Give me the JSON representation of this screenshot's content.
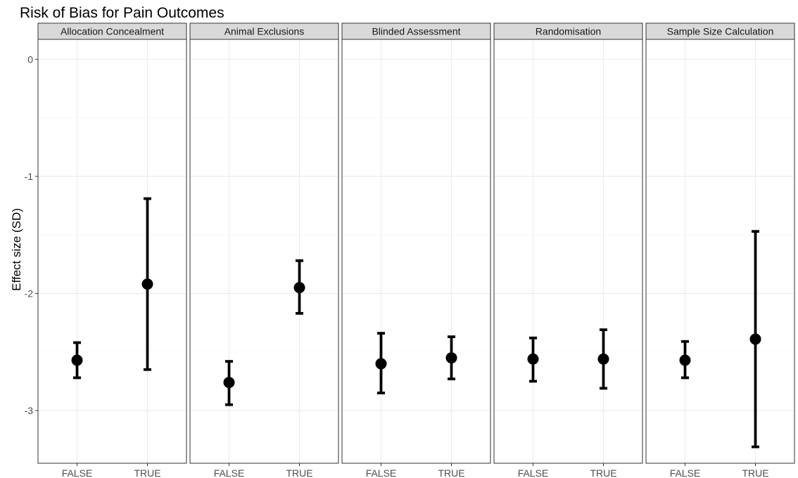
{
  "chart_data": {
    "type": "scatter",
    "title": "Risk of Bias for Pain Outcomes",
    "xlabel": "",
    "ylabel": "Effect size (SD)",
    "ylim": [
      -3.45,
      0.17
    ],
    "yticks": [
      "0",
      "-1",
      "-2",
      "-3"
    ],
    "ytick_values": [
      0,
      -1,
      -2,
      -3
    ],
    "categories": [
      "FALSE",
      "TRUE"
    ],
    "grid": true,
    "facets": [
      {
        "name": "Allocation Concealment",
        "points": [
          {
            "x": "FALSE",
            "y": -2.57,
            "ymin": -2.72,
            "ymax": -2.42
          },
          {
            "x": "TRUE",
            "y": -1.92,
            "ymin": -2.65,
            "ymax": -1.19
          }
        ]
      },
      {
        "name": "Animal Exclusions",
        "points": [
          {
            "x": "FALSE",
            "y": -2.76,
            "ymin": -2.95,
            "ymax": -2.58
          },
          {
            "x": "TRUE",
            "y": -1.95,
            "ymin": -2.17,
            "ymax": -1.72
          }
        ]
      },
      {
        "name": "Blinded Assessment",
        "points": [
          {
            "x": "FALSE",
            "y": -2.6,
            "ymin": -2.85,
            "ymax": -2.34
          },
          {
            "x": "TRUE",
            "y": -2.55,
            "ymin": -2.73,
            "ymax": -2.37
          }
        ]
      },
      {
        "name": "Randomisation",
        "points": [
          {
            "x": "FALSE",
            "y": -2.56,
            "ymin": -2.75,
            "ymax": -2.38
          },
          {
            "x": "TRUE",
            "y": -2.56,
            "ymin": -2.81,
            "ymax": -2.31
          }
        ]
      },
      {
        "name": "Sample Size Calculation",
        "points": [
          {
            "x": "FALSE",
            "y": -2.57,
            "ymin": -2.72,
            "ymax": -2.41
          },
          {
            "x": "TRUE",
            "y": -2.39,
            "ymin": -3.31,
            "ymax": -1.47
          }
        ]
      }
    ],
    "colors": {
      "point": "#000000",
      "panel_border": "#333333",
      "strip_fill": "#d9d9d9",
      "grid": "#ebebeb",
      "tick_text": "#4d4d4d"
    }
  }
}
